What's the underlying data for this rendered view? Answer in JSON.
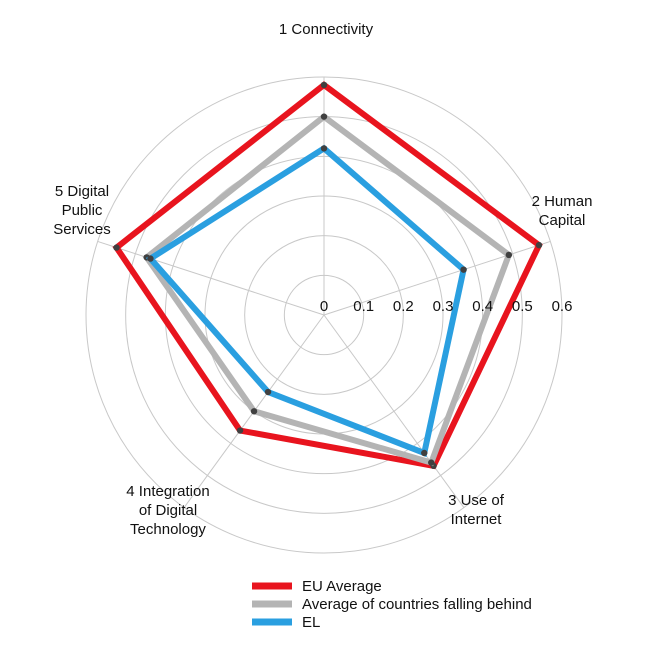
{
  "chart_data": {
    "type": "radar",
    "axes": [
      "1 Connectivity",
      "2 Human Capital",
      "3 Use of Internet",
      "4 Integration of Digital Technology",
      "5 Digital Public Services"
    ],
    "axis_label_lines": [
      [
        "1 Connectivity"
      ],
      [
        "2 Human",
        "Capital"
      ],
      [
        "3 Use of",
        "Internet"
      ],
      [
        "4 Integration",
        "of Digital",
        "Technology"
      ],
      [
        "5 Digital",
        "Public",
        "Services"
      ]
    ],
    "ticks": [
      0,
      0.1,
      0.2,
      0.3,
      0.4,
      0.5,
      0.6
    ],
    "tick_labels": [
      "0",
      "0.1",
      "0.2",
      "0.3",
      "0.4",
      "0.5",
      "0.6"
    ],
    "rlim": [
      0,
      0.6
    ],
    "series": [
      {
        "name": "EU Average",
        "color": "#e8141e",
        "values": [
          0.58,
          0.57,
          0.47,
          0.36,
          0.55
        ]
      },
      {
        "name": "Average of countries falling behind",
        "color": "#b4b4b4",
        "values": [
          0.5,
          0.49,
          0.46,
          0.3,
          0.47
        ]
      },
      {
        "name": "EL",
        "color": "#2a9fe0",
        "values": [
          0.42,
          0.37,
          0.43,
          0.24,
          0.46
        ]
      }
    ],
    "legend_position": "bottom",
    "grid": true
  }
}
